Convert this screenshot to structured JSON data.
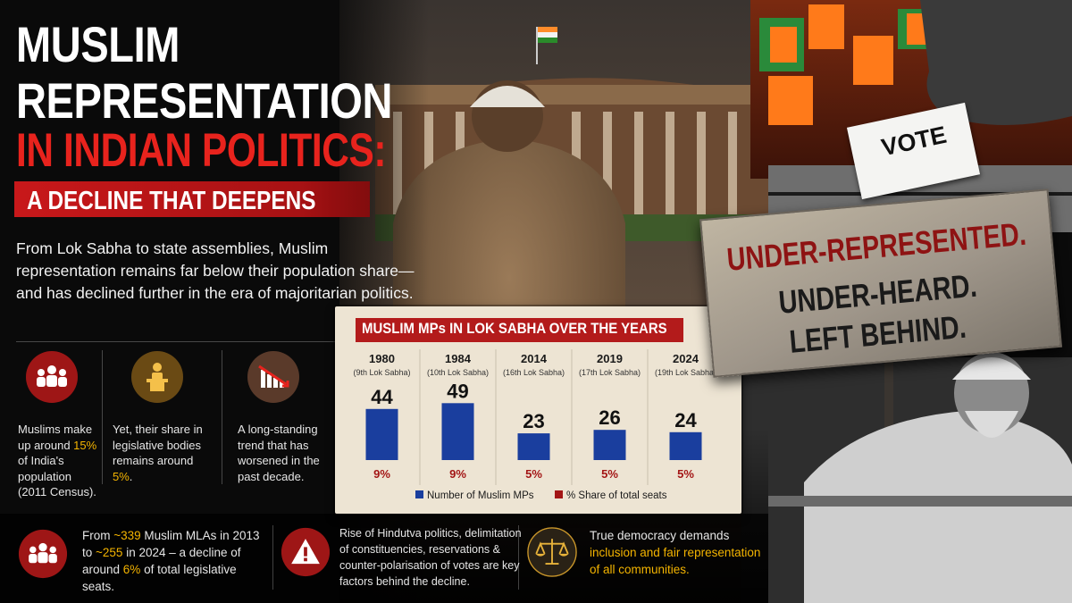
{
  "headline": {
    "line1": "MUSLIM",
    "line2": "REPRESENTATION",
    "line3": "IN INDIAN POLITICS:",
    "subtitle": "A DECLINE THAT DEEPENS"
  },
  "intro": "From Lok Sabha to state assemblies, Muslim representation remains far below their population share—and has declined further in the era of majoritarian politics.",
  "stats": [
    {
      "icon": "people-group-icon",
      "pre": "Muslims make up around ",
      "highlight": "15%",
      "post": " of India's population (2011 Census)."
    },
    {
      "icon": "podium-speaker-icon",
      "pre": "Yet, their share in legislative bodies remains around ",
      "highlight": "5%",
      "post": "."
    },
    {
      "icon": "declining-chart-icon",
      "pre": "A long-standing trend that has worsened in the past decade.",
      "highlight": "",
      "post": ""
    }
  ],
  "bottom": [
    {
      "icon": "people-group-icon",
      "p1": "From ",
      "h1": "~339",
      "p2": " Muslim MLAs in 2013 to ",
      "h2": "~255",
      "p3": " in 2024 – a decline of around ",
      "h3": "6%",
      "p4": " of total legislative seats."
    },
    {
      "icon": "warning-icon",
      "text": "Rise of Hindutva politics, delimitation of constituencies, reservations & counter-polarisation of votes are key factors behind the decline."
    },
    {
      "icon": "scales-of-justice-icon",
      "line1": "True democracy demands",
      "line2": "inclusion and fair representation",
      "line3": "of all communities."
    }
  ],
  "chart_data": {
    "type": "bar",
    "title": "MUSLIM MPs IN LOK SABHA OVER THE YEARS",
    "categories": [
      "1980",
      "1984",
      "2014",
      "2019",
      "2024"
    ],
    "sublabels": [
      "(9th Lok Sabha)",
      "(10th Lok Sabha)",
      "(16th Lok Sabha)",
      "(17th Lok Sabha)",
      "(19th Lok Sabha)"
    ],
    "series": [
      {
        "name": "Number of Muslim MPs",
        "values": [
          44,
          49,
          23,
          26,
          24
        ]
      },
      {
        "name": "% Share of total seats",
        "values": [
          "9%",
          "9%",
          "5%",
          "5%",
          "5%"
        ]
      }
    ],
    "ylim": [
      0,
      50
    ],
    "legend": "bottom",
    "colors": {
      "bar": "#1a3e9e",
      "share": "#a31515",
      "title_bar": "#b31b1b"
    }
  },
  "sign": {
    "line1": "UNDER-REPRESENTED.",
    "line2": "UNDER-HEARD.",
    "line3": "LEFT BEHIND."
  },
  "ballot": "VOTE",
  "colors": {
    "accent_red": "#e8231d",
    "highlight_yellow": "#f4b400"
  }
}
